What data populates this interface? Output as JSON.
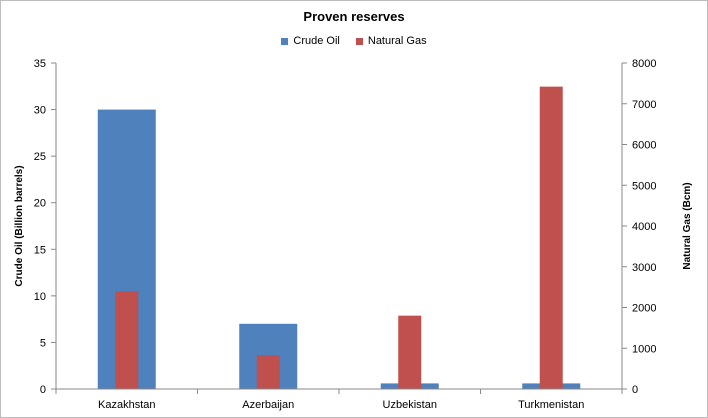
{
  "chart_data": {
    "type": "bar",
    "title": "Proven reserves",
    "categories": [
      "Kazakhstan",
      "Azerbaijan",
      "Uzbekistan",
      "Turkmenistan"
    ],
    "series": [
      {
        "name": "Crude Oil",
        "axis": "left",
        "color": "#4f81bd",
        "values": [
          30,
          7,
          0.6,
          0.6
        ]
      },
      {
        "name": "Natural Gas",
        "axis": "right",
        "color": "#c0504d",
        "values": [
          2400,
          830,
          1800,
          7420
        ]
      }
    ],
    "ylabel": "Crude Oil (Billion barrels)",
    "ylabel_right": "Natural Gas (Bcm)",
    "ylim": [
      0,
      35
    ],
    "ylim_right": [
      0,
      8000
    ],
    "yticks": [
      0,
      5,
      10,
      15,
      20,
      25,
      30,
      35
    ],
    "yticks_right": [
      0,
      1000,
      2000,
      3000,
      4000,
      5000,
      6000,
      7000,
      8000
    ],
    "grid": false,
    "legend_position": "top"
  }
}
